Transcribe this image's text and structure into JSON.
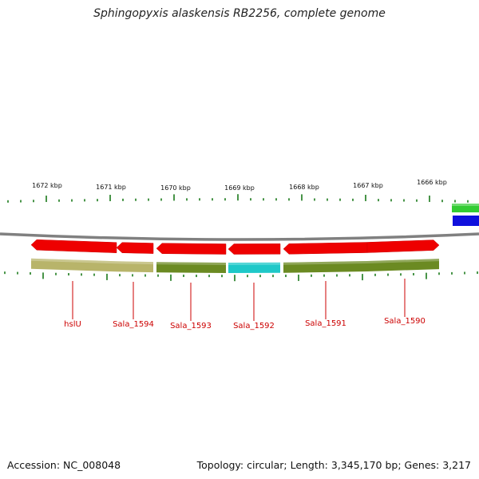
{
  "title": "Sphingopyxis alaskensis RB2256, complete genome",
  "footer": {
    "accession": "Accession: NC_008048",
    "summary": "Topology: circular; Length: 3,345,170 bp; Genes: 3,217"
  },
  "ruler": {
    "labels": [
      "1672 kbp",
      "1671 kbp",
      "1670 kbp",
      "1669 kbp",
      "1668 kbp",
      "1667 kbp",
      "1666 kbp"
    ]
  },
  "genes": [
    {
      "name": "hslU",
      "strand": "minus",
      "color": "#ee0000",
      "cog_color": "#b8b46a"
    },
    {
      "name": "Sala_1594",
      "strand": "minus",
      "color": "#ee0000",
      "cog_color": "#b8b46a"
    },
    {
      "name": "Sala_1593",
      "strand": "minus",
      "color": "#ee0000",
      "cog_color": "#6b8a22"
    },
    {
      "name": "Sala_1592",
      "strand": "minus",
      "color": "#ee0000",
      "cog_color": "#1ec8c8"
    },
    {
      "name": "Sala_1591",
      "strand": "minus",
      "color": "#ee0000",
      "cog_color": "#6b8a22"
    },
    {
      "name": "Sala_1590",
      "strand": "plus",
      "color": "#ee0000",
      "cog_color": "#6b8a22"
    }
  ],
  "edge_features": [
    {
      "color": "#33cc33"
    },
    {
      "color": "#1010dd"
    }
  ],
  "colors": {
    "backbone": "#808080",
    "tick": "#1a7a1a",
    "label_line": "#cc0000"
  }
}
